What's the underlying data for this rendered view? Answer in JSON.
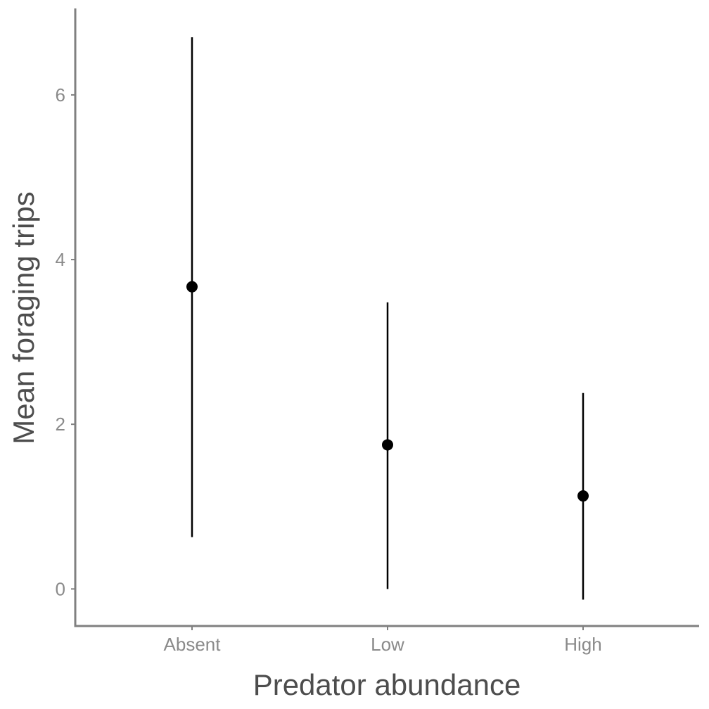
{
  "chart_data": {
    "type": "scatter",
    "subtype": "point-with-error-bars",
    "title": "",
    "xlabel": "Predator abundance",
    "ylabel": "Mean foraging trips",
    "categories": [
      "Absent",
      "Low",
      "High"
    ],
    "series": [
      {
        "values": [
          3.67,
          1.75,
          1.13
        ],
        "lower": [
          0.63,
          0.0,
          -0.13
        ],
        "upper": [
          6.7,
          3.48,
          2.38
        ]
      }
    ],
    "yticks": [
      0,
      2,
      4,
      6
    ],
    "ylim": [
      -0.45,
      7.05
    ],
    "grid": false,
    "legend": "none",
    "colors": {
      "point": "#000000",
      "axis": "#808080",
      "tick_label": "#8a8a8a",
      "axis_title": "#4d4d4d"
    }
  }
}
